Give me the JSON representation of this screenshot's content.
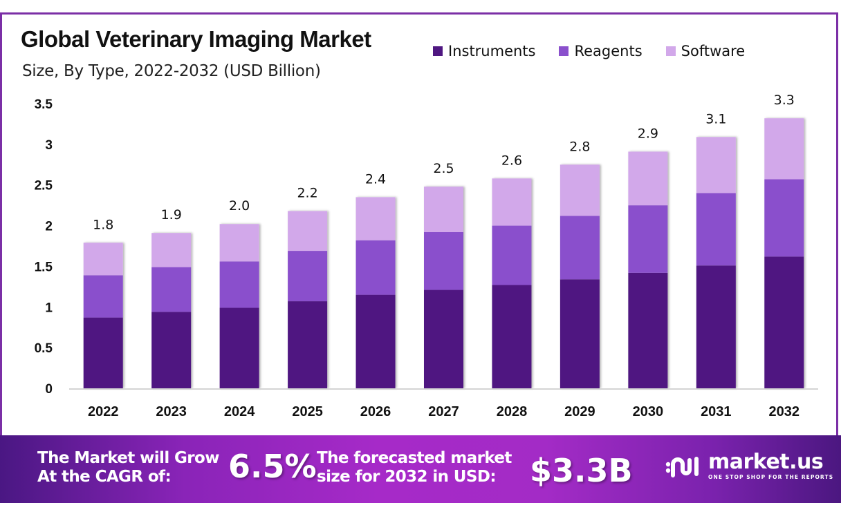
{
  "header": {
    "title": "Global Veterinary Imaging Market",
    "subtitle": "Size, By Type, 2022-2032 (USD Billion)"
  },
  "chart_data": {
    "type": "bar",
    "stacked": true,
    "title": "Global Veterinary Imaging Market",
    "subtitle": "Size, By Type, 2022-2032 (USD Billion)",
    "xlabel": "",
    "ylabel": "",
    "ylim": [
      0,
      3.5
    ],
    "yticks": [
      0,
      0.5,
      1,
      1.5,
      2,
      2.5,
      3,
      3.5
    ],
    "ytick_labels": [
      "0",
      "0.5",
      "1",
      "1.5",
      "2",
      "2.5",
      "3",
      "3.5"
    ],
    "grid": false,
    "legend_position": "top-right",
    "categories": [
      "2022",
      "2023",
      "2024",
      "2025",
      "2026",
      "2027",
      "2028",
      "2029",
      "2030",
      "2031",
      "2032"
    ],
    "series": [
      {
        "name": "Instruments",
        "color": "#4f1781",
        "values": [
          0.87,
          0.94,
          0.99,
          1.07,
          1.15,
          1.21,
          1.27,
          1.34,
          1.42,
          1.51,
          1.62
        ]
      },
      {
        "name": "Reagents",
        "color": "#8a50cc",
        "values": [
          0.52,
          0.55,
          0.57,
          0.62,
          0.67,
          0.71,
          0.73,
          0.78,
          0.83,
          0.89,
          0.95
        ]
      },
      {
        "name": "Software",
        "color": "#d2a8ea",
        "values": [
          0.4,
          0.42,
          0.46,
          0.49,
          0.53,
          0.56,
          0.58,
          0.63,
          0.66,
          0.69,
          0.75
        ]
      }
    ],
    "total_labels": [
      "1.8",
      "1.9",
      "2.0",
      "2.2",
      "2.4",
      "2.5",
      "2.6",
      "2.8",
      "2.9",
      "3.1",
      "3.3"
    ]
  },
  "footer": {
    "cagr_text_line1": "The Market will Grow",
    "cagr_text_line2": "At the CAGR of:",
    "cagr_value": "6.5%",
    "forecast_text_line1": "The forecasted market",
    "forecast_text_line2": "size for 2032 in USD:",
    "forecast_value": "$3.3B",
    "brand_name": "market.us",
    "brand_tagline": "ONE STOP SHOP FOR THE REPORTS"
  }
}
